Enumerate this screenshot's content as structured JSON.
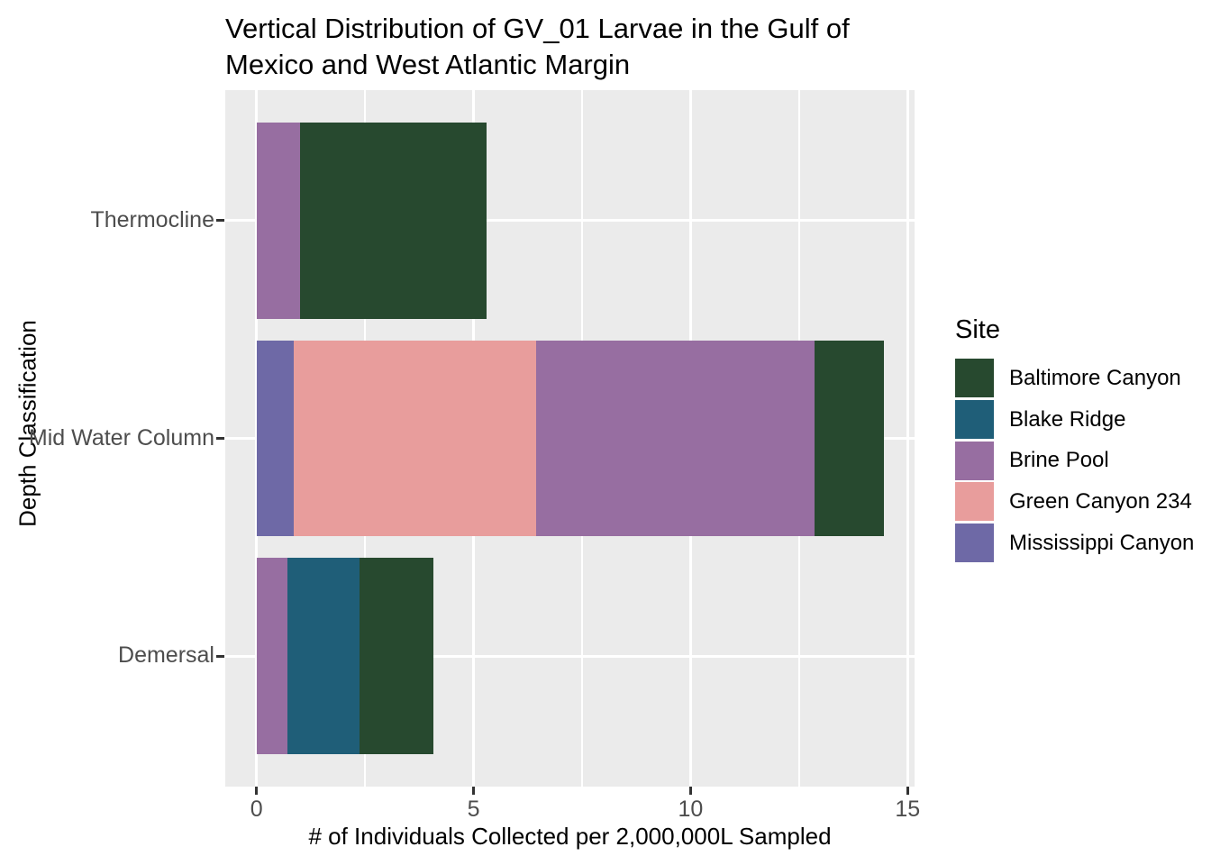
{
  "title": "Vertical Distribution of GV_01 Larvae in the Gulf of Mexico and West Atlantic Margin",
  "axes": {
    "x_title": "# of Individuals Collected per 2,000,000L Sampled",
    "y_title": "Depth Classification",
    "x_tick_labels": [
      "0",
      "5",
      "10",
      "15"
    ],
    "x_tick_values": [
      0,
      5,
      10,
      15
    ],
    "x_minor_values": [
      2.5,
      7.5,
      12.5
    ],
    "x_range": [
      -0.72,
      15.16
    ],
    "y_tick_labels": [
      "Thermocline",
      "Mid Water Column",
      "Demersal"
    ]
  },
  "legend": {
    "title": "Site",
    "items": [
      {
        "label": "Baltimore Canyon",
        "color": "#27492F"
      },
      {
        "label": "Blake Ridge",
        "color": "#1F5E78"
      },
      {
        "label": "Brine Pool",
        "color": "#976EA1"
      },
      {
        "label": "Green Canyon 234",
        "color": "#E89D9C"
      },
      {
        "label": "Mississippi Canyon",
        "color": "#6E69A6"
      }
    ]
  },
  "chart_data": {
    "type": "bar",
    "orientation": "horizontal",
    "stacked": true,
    "title": "Vertical Distribution of GV_01 Larvae in the Gulf of Mexico and West Atlantic Margin",
    "xlabel": "# of Individuals Collected per 2,000,000L Sampled",
    "ylabel": "Depth Classification",
    "categories": [
      "Thermocline",
      "Mid Water Column",
      "Demersal"
    ],
    "series": [
      {
        "name": "Baltimore Canyon",
        "color": "#27492F",
        "values": [
          4.3,
          1.6,
          1.7
        ]
      },
      {
        "name": "Blake Ridge",
        "color": "#1F5E78",
        "values": [
          0,
          0,
          1.66
        ]
      },
      {
        "name": "Brine Pool",
        "color": "#976EA1",
        "values": [
          1.0,
          6.4,
          0.72
        ]
      },
      {
        "name": "Green Canyon 234",
        "color": "#E89D9C",
        "values": [
          0,
          5.6,
          0
        ]
      },
      {
        "name": "Mississippi Canyon",
        "color": "#6E69A6",
        "values": [
          0,
          0.85,
          0
        ]
      }
    ],
    "stack_order_from_axis": [
      "Mississippi Canyon",
      "Green Canyon 234",
      "Brine Pool",
      "Blake Ridge",
      "Baltimore Canyon"
    ],
    "category_totals": [
      5.3,
      14.45,
      4.08
    ],
    "xlim": [
      0,
      15
    ],
    "grid": true,
    "legend_position": "right",
    "legend_title": "Site"
  },
  "colors": {
    "panel_bg": "#EBEBEB",
    "grid": "#FFFFFF",
    "tick": "#333333",
    "tick_label": "#4D4D4D",
    "text": "#000000"
  }
}
